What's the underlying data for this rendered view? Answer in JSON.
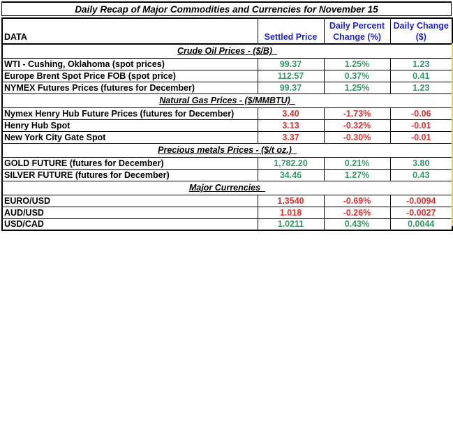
{
  "title": "Daily Recap of Major Commodities and Currencies for November 15",
  "header": {
    "data_label": "DATA",
    "settled_price": "Settled Price",
    "daily_percent_change": "Daily Percent Change (%)",
    "daily_change": "Daily Change ($)"
  },
  "colors": {
    "positive": "#339966",
    "negative": "#e03030",
    "header_blue": "#2222cc",
    "highlight_yellow": "#e2d13d"
  },
  "sections": [
    {
      "header": "Crude Oil Prices - ($/B)",
      "rows": [
        {
          "label": "WTI - Cushing, Oklahoma (spot prices)",
          "settled_price": "99.37",
          "percent_change": "1.25%",
          "change": "1.23",
          "trend": "positive"
        },
        {
          "label": "Europe Brent Spot Price FOB (spot price)",
          "settled_price": "112.57",
          "percent_change": "0.37%",
          "change": "0.41",
          "trend": "positive"
        },
        {
          "label": "NYMEX Futures Prices (futures for December)",
          "settled_price": "99.37",
          "percent_change": "1.25%",
          "change": "1.23",
          "trend": "positive"
        }
      ]
    },
    {
      "header": "Natural Gas Prices - ($/MMBTU)",
      "rows": [
        {
          "label": "Nymex Henry Hub Future Prices (futures for December)",
          "settled_price": "3.40",
          "percent_change": "-1.73%",
          "change": "-0.06",
          "trend": "negative"
        },
        {
          "label": "Henry Hub Spot",
          "settled_price": "3.13",
          "percent_change": "-0.32%",
          "change": "-0.01",
          "trend": "negative"
        },
        {
          "label": "New York City Gate Spot",
          "settled_price": "3.37",
          "percent_change": "-0.30%",
          "change": "-0.01",
          "trend": "negative"
        }
      ]
    },
    {
      "header": "Precious metals Prices - ($/t oz.)",
      "rows": [
        {
          "label": "GOLD FUTURE (futures for December)",
          "settled_price": "1,782.20",
          "percent_change": "0.21%",
          "change": "3.80",
          "trend": "positive"
        },
        {
          "label": "SILVER FUTURE (futures for December)",
          "settled_price": "34.46",
          "percent_change": "1.27%",
          "change": "0.43",
          "trend": "positive"
        }
      ]
    },
    {
      "header": "Major Currencies",
      "rows": [
        {
          "label": "EURO/USD",
          "settled_price": "1.3540",
          "percent_change": "-0.69%",
          "change": "-0.0094",
          "trend": "negative"
        },
        {
          "label": "AUD/USD",
          "settled_price": "1.018",
          "percent_change": "-0.26%",
          "change": "-0.0027",
          "trend": "negative"
        },
        {
          "label": "USD/CAD",
          "settled_price": "1.0211",
          "percent_change": "0.43%",
          "change": "0.0044",
          "trend": "positive"
        }
      ]
    }
  ]
}
